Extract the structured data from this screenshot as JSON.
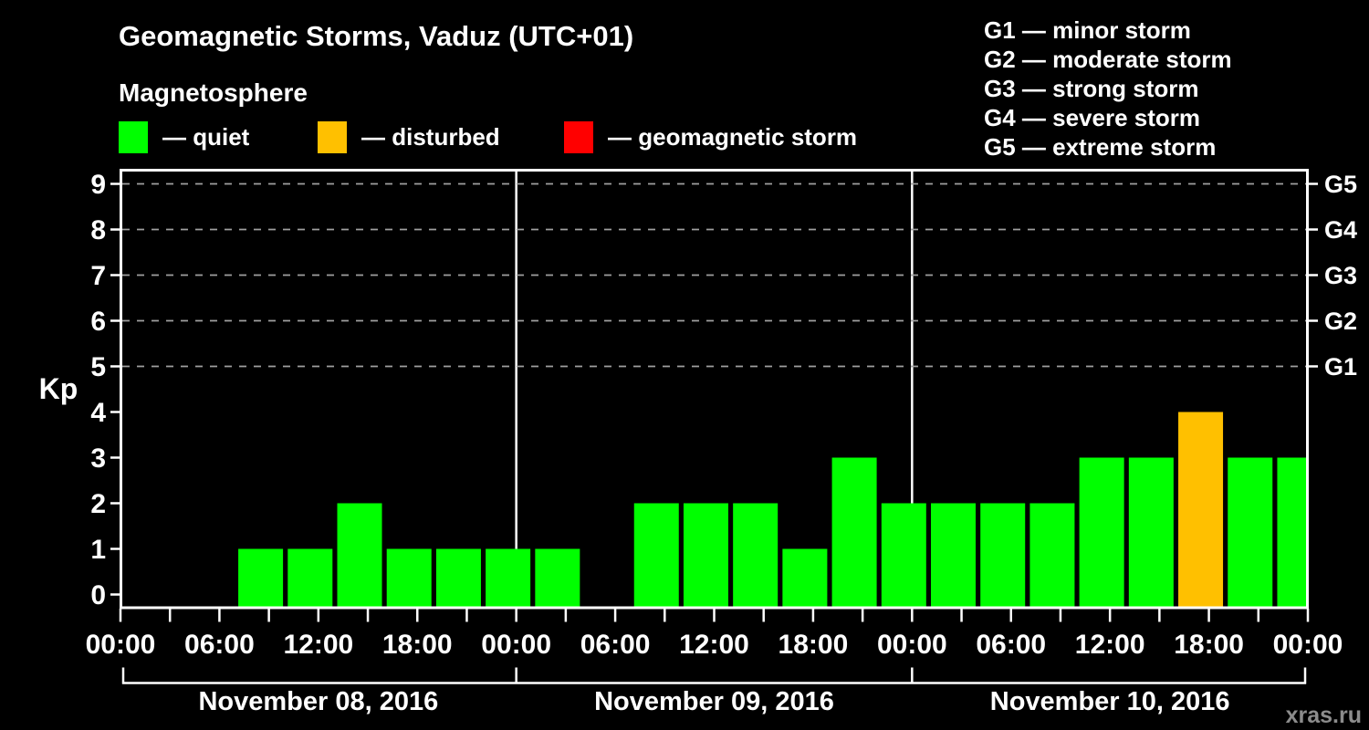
{
  "title": "Geomagnetic Storms, Vaduz (UTC+01)",
  "subtitle": "Magnetosphere",
  "watermark": "xras.ru",
  "colors": {
    "background": "#000000",
    "axis": "#FFFFFF",
    "grid_dashed": "#A0A0A0",
    "quiet": "#00FF00",
    "disturbed": "#FFC000",
    "storm": "#FF0000",
    "watermark_text": "#8C8C8C"
  },
  "condition_legend": [
    {
      "name": "quiet",
      "label": "— quiet"
    },
    {
      "name": "disturbed",
      "label": "— disturbed"
    },
    {
      "name": "storm",
      "label": "— geomagnetic storm"
    }
  ],
  "storm_scale_legend": [
    "G1 — minor storm",
    "G2 — moderate storm",
    "G3 — strong storm",
    "G4 — severe storm",
    "G5 — extreme storm"
  ],
  "chart_data": {
    "type": "bar",
    "ylabel": "Kp",
    "ylim": [
      -0.3,
      9.3
    ],
    "y_ticks": [
      0,
      1,
      2,
      3,
      4,
      5,
      6,
      7,
      8,
      9
    ],
    "right_axis": [
      {
        "kp": 5,
        "label": "G1"
      },
      {
        "kp": 6,
        "label": "G2"
      },
      {
        "kp": 7,
        "label": "G3"
      },
      {
        "kp": 8,
        "label": "G4"
      },
      {
        "kp": 9,
        "label": "G5"
      }
    ],
    "grid_dashed_at_kp": [
      5,
      6,
      7,
      8,
      9
    ],
    "x_tick_labels": [
      "00:00",
      "06:00",
      "12:00",
      "18:00",
      "00:00",
      "06:00",
      "12:00",
      "18:00",
      "00:00",
      "06:00",
      "12:00",
      "18:00",
      "00:00"
    ],
    "slot_hours": 3,
    "first_slot_start_hour": 1,
    "days": [
      {
        "date": "November 08, 2016",
        "kp_values": [
          null,
          null,
          1,
          1,
          2,
          1,
          1,
          1
        ]
      },
      {
        "date": "November 09, 2016",
        "kp_values": [
          1,
          null,
          2,
          2,
          2,
          1,
          3,
          2
        ]
      },
      {
        "date": "November 10, 2016",
        "kp_values": [
          2,
          2,
          2,
          3,
          3,
          4,
          3,
          3
        ]
      }
    ]
  }
}
